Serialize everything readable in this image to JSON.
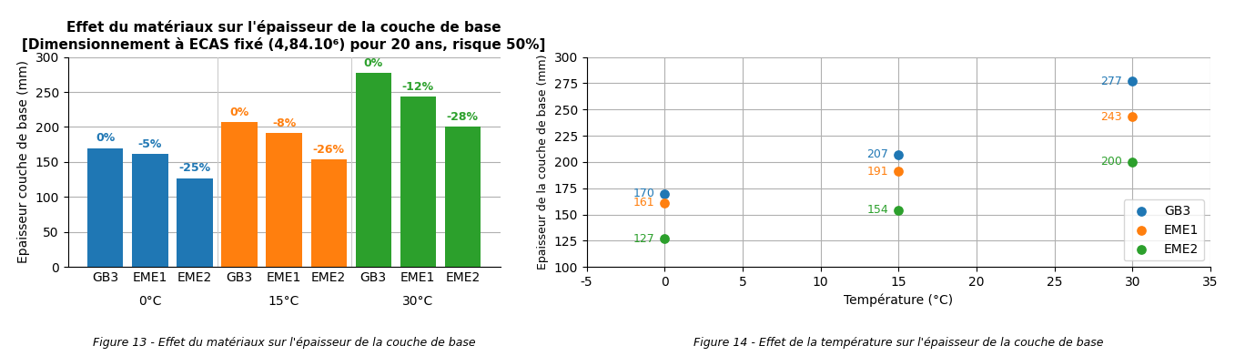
{
  "chart_data": [
    {
      "type": "bar",
      "title": "Effet du matériaux sur l'épaisseur de la couche de base",
      "subtitle": "[Dimensionnement à ECAS fixé (4,84.10⁶) pour 20 ans, risque 50%]",
      "caption": "Figure 13 - Effet du matériaux sur l'épaisseur de la couche de base",
      "ylabel": "Epaisseur couche de base (mm)",
      "categories": [
        "GB3",
        "EME1",
        "EME2",
        "GB3",
        "EME1",
        "EME2",
        "GB3",
        "EME1",
        "EME2"
      ],
      "groups": [
        "0°C",
        "15°C",
        "30°C"
      ],
      "values": [
        170,
        161,
        127,
        207,
        191,
        154,
        277,
        243,
        200
      ],
      "annotations": [
        "0%",
        "-5%",
        "-25%",
        "0%",
        "-8%",
        "-26%",
        "0%",
        "-12%",
        "-28%"
      ],
      "ylim": [
        0,
        300
      ],
      "yticks": [
        0,
        50,
        100,
        150,
        200,
        250,
        300
      ],
      "grid": "y"
    },
    {
      "type": "scatter",
      "caption": "Figure 14 - Effet de la température sur l'épaisseur de la couche de base",
      "xlabel": "Température (°C)",
      "ylabel": "Epaisseur de la couche de base (mm)",
      "x": [
        0,
        15,
        30
      ],
      "series": [
        {
          "name": "GB3",
          "values": [
            170,
            207,
            277
          ]
        },
        {
          "name": "EME1",
          "values": [
            161,
            191,
            243
          ]
        },
        {
          "name": "EME2",
          "values": [
            127,
            154,
            200
          ]
        }
      ],
      "marker": "o",
      "data_labels": true,
      "xlim": [
        -5,
        35
      ],
      "xticks": [
        -5,
        0,
        5,
        10,
        15,
        20,
        25,
        30,
        35
      ],
      "ylim": [
        100,
        300
      ],
      "yticks": [
        100,
        125,
        150,
        175,
        200,
        225,
        250,
        275,
        300
      ],
      "grid": true,
      "legend": "lower right"
    }
  ]
}
